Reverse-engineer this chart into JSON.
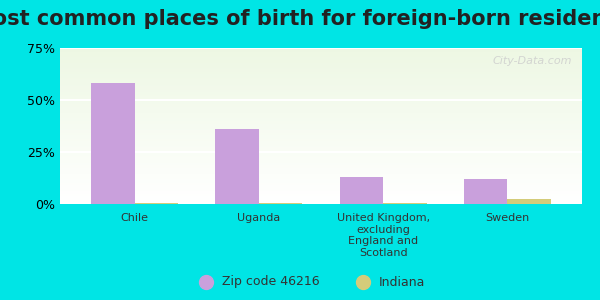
{
  "title": "Most common places of birth for foreign-born residents",
  "categories": [
    "Chile",
    "Uganda",
    "United Kingdom,\nexcluding\nEngland and\nScotland",
    "Sweden"
  ],
  "zip_values": [
    0.58,
    0.36,
    0.13,
    0.12
  ],
  "indiana_values": [
    0.005,
    0.005,
    0.005,
    0.025
  ],
  "zip_color": "#c9a0dc",
  "indiana_color": "#d4cc7a",
  "ylim": [
    0,
    0.75
  ],
  "yticks": [
    0,
    0.25,
    0.5,
    0.75
  ],
  "ytick_labels": [
    "0%",
    "25%",
    "50%",
    "75%"
  ],
  "background_outer": "#00e5e5",
  "grid_color": "#ffffff",
  "title_fontsize": 15,
  "legend_zip_label": "Zip code 46216",
  "legend_indiana_label": "Indiana",
  "watermark": "City-Data.com"
}
